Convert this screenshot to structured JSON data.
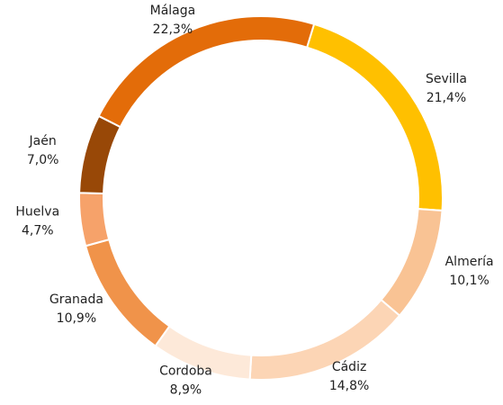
{
  "chart_data": {
    "type": "donut",
    "categories": [
      "Sevilla",
      "Almería",
      "Cádiz",
      "Cordoba",
      "Granada",
      "Huelva",
      "Jaén",
      "Málaga"
    ],
    "values": [
      21.4,
      10.1,
      14.8,
      8.9,
      10.9,
      4.7,
      7.0,
      22.3
    ],
    "value_labels": [
      "21,4%",
      "10,1%",
      "14,8%",
      "8,9%",
      "10,9%",
      "4,7%",
      "7,0%",
      "22,3%"
    ],
    "colors": [
      "#ffc000",
      "#f9c394",
      "#fcd5b5",
      "#fde9d9",
      "#f0934a",
      "#f6a26a",
      "#984807",
      "#e36c09"
    ]
  }
}
